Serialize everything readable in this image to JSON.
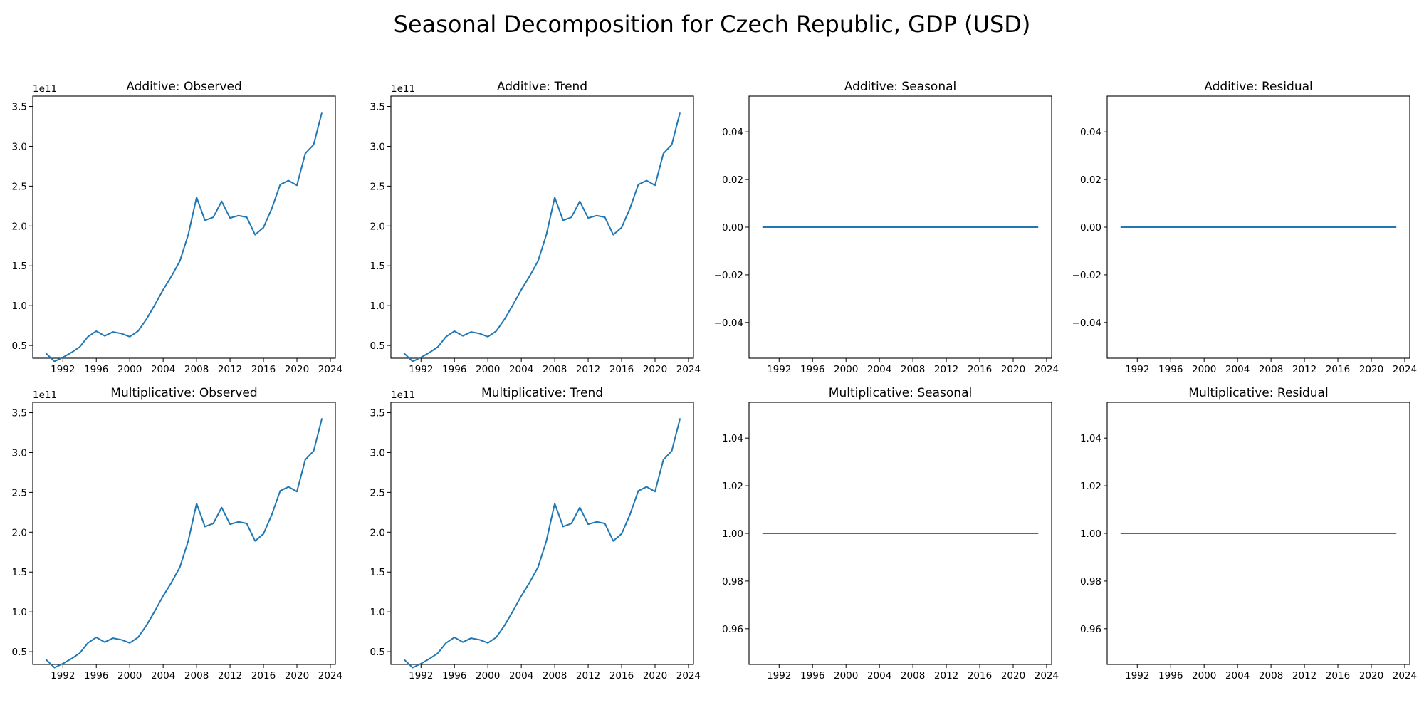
{
  "figure": {
    "title": "Seasonal Decomposition for Czech Republic, GDP (USD)"
  },
  "chart_data": [
    {
      "type": "line",
      "title": "Additive: Observed",
      "xlabel": "",
      "ylabel": "",
      "offset_label": "1e11",
      "x_ticks": [
        "1992",
        "1996",
        "2000",
        "2004",
        "2008",
        "2012",
        "2016",
        "2020",
        "2024"
      ],
      "y_ticks": [
        "0.5",
        "1.0",
        "1.5",
        "2.0",
        "2.5",
        "3.0",
        "3.5"
      ],
      "y_tick_values": [
        0.5,
        1.0,
        1.5,
        2.0,
        2.5,
        3.0,
        3.5
      ],
      "xlim": [
        1988.4,
        2024.6
      ],
      "ylim": [
        0.34,
        3.63
      ],
      "grid": false,
      "x": [
        1990,
        1991,
        1992,
        1993,
        1994,
        1995,
        1996,
        1997,
        1998,
        1999,
        2000,
        2001,
        2002,
        2003,
        2004,
        2005,
        2006,
        2007,
        2008,
        2009,
        2010,
        2011,
        2012,
        2013,
        2014,
        2015,
        2016,
        2017,
        2018,
        2019,
        2020,
        2021,
        2022,
        2023
      ],
      "series": [
        {
          "values": [
            0.4,
            0.3,
            0.35,
            0.41,
            0.48,
            0.61,
            0.68,
            0.62,
            0.67,
            0.65,
            0.61,
            0.68,
            0.83,
            1.01,
            1.2,
            1.37,
            1.56,
            1.89,
            2.36,
            2.07,
            2.11,
            2.31,
            2.1,
            2.13,
            2.11,
            1.89,
            1.98,
            2.22,
            2.52,
            2.57,
            2.51,
            2.91,
            3.02,
            3.43
          ],
          "color": "#1f77b4"
        }
      ]
    },
    {
      "type": "line",
      "title": "Additive: Trend",
      "xlabel": "",
      "ylabel": "",
      "offset_label": "1e11",
      "x_ticks": [
        "1992",
        "1996",
        "2000",
        "2004",
        "2008",
        "2012",
        "2016",
        "2020",
        "2024"
      ],
      "y_ticks": [
        "0.5",
        "1.0",
        "1.5",
        "2.0",
        "2.5",
        "3.0",
        "3.5"
      ],
      "y_tick_values": [
        0.5,
        1.0,
        1.5,
        2.0,
        2.5,
        3.0,
        3.5
      ],
      "xlim": [
        1988.4,
        2024.6
      ],
      "ylim": [
        0.34,
        3.63
      ],
      "grid": false,
      "x": [
        1990,
        1991,
        1992,
        1993,
        1994,
        1995,
        1996,
        1997,
        1998,
        1999,
        2000,
        2001,
        2002,
        2003,
        2004,
        2005,
        2006,
        2007,
        2008,
        2009,
        2010,
        2011,
        2012,
        2013,
        2014,
        2015,
        2016,
        2017,
        2018,
        2019,
        2020,
        2021,
        2022,
        2023
      ],
      "series": [
        {
          "values": [
            0.4,
            0.3,
            0.35,
            0.41,
            0.48,
            0.61,
            0.68,
            0.62,
            0.67,
            0.65,
            0.61,
            0.68,
            0.83,
            1.01,
            1.2,
            1.37,
            1.56,
            1.89,
            2.36,
            2.07,
            2.11,
            2.31,
            2.1,
            2.13,
            2.11,
            1.89,
            1.98,
            2.22,
            2.52,
            2.57,
            2.51,
            2.91,
            3.02,
            3.43
          ],
          "color": "#1f77b4"
        }
      ]
    },
    {
      "type": "line",
      "title": "Additive: Seasonal",
      "xlabel": "",
      "ylabel": "",
      "offset_label": "",
      "x_ticks": [
        "1992",
        "1996",
        "2000",
        "2004",
        "2008",
        "2012",
        "2016",
        "2020",
        "2024"
      ],
      "y_ticks": [
        "−0.04",
        "−0.02",
        "0.00",
        "0.02",
        "0.04"
      ],
      "y_tick_values": [
        -0.04,
        -0.02,
        0.0,
        0.02,
        0.04
      ],
      "xlim": [
        1988.4,
        2024.6
      ],
      "ylim": [
        -0.055,
        0.055
      ],
      "grid": false,
      "x": [
        1990,
        2023
      ],
      "series": [
        {
          "values": [
            0.0,
            0.0
          ],
          "color": "#1f77b4"
        }
      ]
    },
    {
      "type": "line",
      "title": "Additive: Residual",
      "xlabel": "",
      "ylabel": "",
      "offset_label": "",
      "x_ticks": [
        "1992",
        "1996",
        "2000",
        "2004",
        "2008",
        "2012",
        "2016",
        "2020",
        "2024"
      ],
      "y_ticks": [
        "−0.04",
        "−0.02",
        "0.00",
        "0.02",
        "0.04"
      ],
      "y_tick_values": [
        -0.04,
        -0.02,
        0.0,
        0.02,
        0.04
      ],
      "xlim": [
        1988.4,
        2024.6
      ],
      "ylim": [
        -0.055,
        0.055
      ],
      "grid": false,
      "x": [
        1990,
        2023
      ],
      "series": [
        {
          "values": [
            0.0,
            0.0
          ],
          "color": "#1f77b4"
        }
      ]
    },
    {
      "type": "line",
      "title": "Multiplicative: Observed",
      "xlabel": "",
      "ylabel": "",
      "offset_label": "1e11",
      "x_ticks": [
        "1992",
        "1996",
        "2000",
        "2004",
        "2008",
        "2012",
        "2016",
        "2020",
        "2024"
      ],
      "y_ticks": [
        "0.5",
        "1.0",
        "1.5",
        "2.0",
        "2.5",
        "3.0",
        "3.5"
      ],
      "y_tick_values": [
        0.5,
        1.0,
        1.5,
        2.0,
        2.5,
        3.0,
        3.5
      ],
      "xlim": [
        1988.4,
        2024.6
      ],
      "ylim": [
        0.34,
        3.63
      ],
      "grid": false,
      "x": [
        1990,
        1991,
        1992,
        1993,
        1994,
        1995,
        1996,
        1997,
        1998,
        1999,
        2000,
        2001,
        2002,
        2003,
        2004,
        2005,
        2006,
        2007,
        2008,
        2009,
        2010,
        2011,
        2012,
        2013,
        2014,
        2015,
        2016,
        2017,
        2018,
        2019,
        2020,
        2021,
        2022,
        2023
      ],
      "series": [
        {
          "values": [
            0.4,
            0.3,
            0.35,
            0.41,
            0.48,
            0.61,
            0.68,
            0.62,
            0.67,
            0.65,
            0.61,
            0.68,
            0.83,
            1.01,
            1.2,
            1.37,
            1.56,
            1.89,
            2.36,
            2.07,
            2.11,
            2.31,
            2.1,
            2.13,
            2.11,
            1.89,
            1.98,
            2.22,
            2.52,
            2.57,
            2.51,
            2.91,
            3.02,
            3.43
          ],
          "color": "#1f77b4"
        }
      ]
    },
    {
      "type": "line",
      "title": "Multiplicative: Trend",
      "xlabel": "",
      "ylabel": "",
      "offset_label": "1e11",
      "x_ticks": [
        "1992",
        "1996",
        "2000",
        "2004",
        "2008",
        "2012",
        "2016",
        "2020",
        "2024"
      ],
      "y_ticks": [
        "0.5",
        "1.0",
        "1.5",
        "2.0",
        "2.5",
        "3.0",
        "3.5"
      ],
      "y_tick_values": [
        0.5,
        1.0,
        1.5,
        2.0,
        2.5,
        3.0,
        3.5
      ],
      "xlim": [
        1988.4,
        2024.6
      ],
      "ylim": [
        0.34,
        3.63
      ],
      "grid": false,
      "x": [
        1990,
        1991,
        1992,
        1993,
        1994,
        1995,
        1996,
        1997,
        1998,
        1999,
        2000,
        2001,
        2002,
        2003,
        2004,
        2005,
        2006,
        2007,
        2008,
        2009,
        2010,
        2011,
        2012,
        2013,
        2014,
        2015,
        2016,
        2017,
        2018,
        2019,
        2020,
        2021,
        2022,
        2023
      ],
      "series": [
        {
          "values": [
            0.4,
            0.3,
            0.35,
            0.41,
            0.48,
            0.61,
            0.68,
            0.62,
            0.67,
            0.65,
            0.61,
            0.68,
            0.83,
            1.01,
            1.2,
            1.37,
            1.56,
            1.89,
            2.36,
            2.07,
            2.11,
            2.31,
            2.1,
            2.13,
            2.11,
            1.89,
            1.98,
            2.22,
            2.52,
            2.57,
            2.51,
            2.91,
            3.02,
            3.43
          ],
          "color": "#1f77b4"
        }
      ]
    },
    {
      "type": "line",
      "title": "Multiplicative: Seasonal",
      "xlabel": "",
      "ylabel": "",
      "offset_label": "",
      "x_ticks": [
        "1992",
        "1996",
        "2000",
        "2004",
        "2008",
        "2012",
        "2016",
        "2020",
        "2024"
      ],
      "y_ticks": [
        "0.96",
        "0.98",
        "1.00",
        "1.02",
        "1.04"
      ],
      "y_tick_values": [
        0.96,
        0.98,
        1.0,
        1.02,
        1.04
      ],
      "xlim": [
        1988.4,
        2024.6
      ],
      "ylim": [
        0.945,
        1.055
      ],
      "grid": false,
      "x": [
        1990,
        2023
      ],
      "series": [
        {
          "values": [
            1.0,
            1.0
          ],
          "color": "#1f77b4"
        }
      ]
    },
    {
      "type": "line",
      "title": "Multiplicative: Residual",
      "xlabel": "",
      "ylabel": "",
      "offset_label": "",
      "x_ticks": [
        "1992",
        "1996",
        "2000",
        "2004",
        "2008",
        "2012",
        "2016",
        "2020",
        "2024"
      ],
      "y_ticks": [
        "0.96",
        "0.98",
        "1.00",
        "1.02",
        "1.04"
      ],
      "y_tick_values": [
        0.96,
        0.98,
        1.0,
        1.02,
        1.04
      ],
      "xlim": [
        1988.4,
        2024.6
      ],
      "ylim": [
        0.945,
        1.055
      ],
      "grid": false,
      "x": [
        1990,
        2023
      ],
      "series": [
        {
          "values": [
            1.0,
            1.0
          ],
          "color": "#1f77b4"
        }
      ]
    }
  ]
}
